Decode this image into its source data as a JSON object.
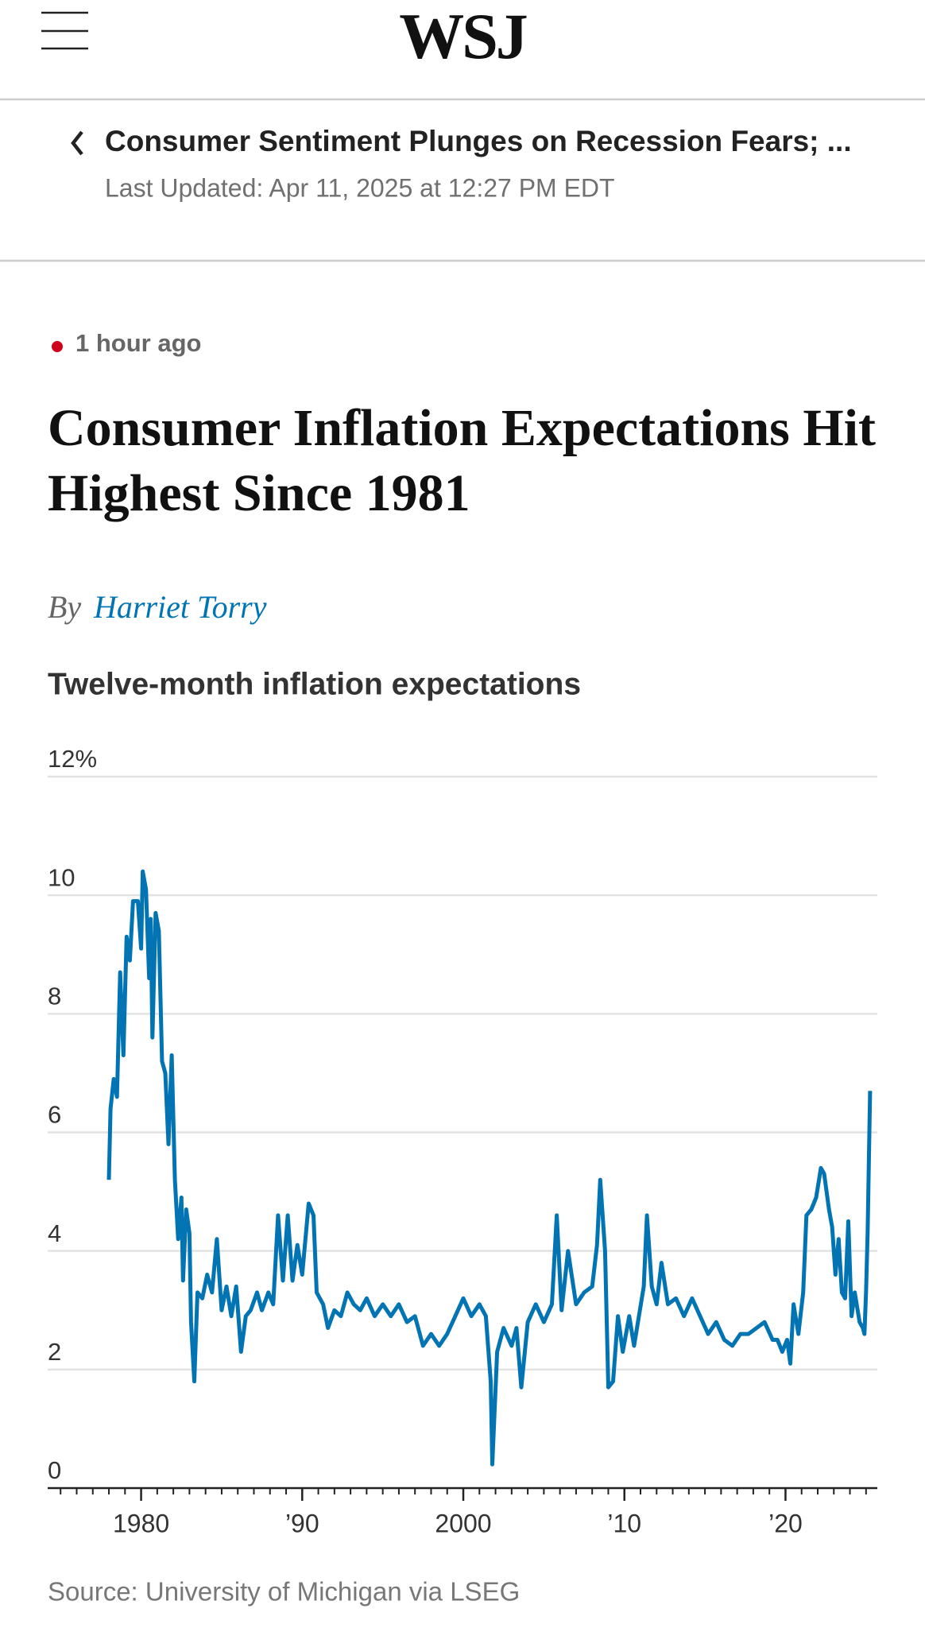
{
  "header": {
    "logo": "WSJ"
  },
  "live_bar": {
    "title": "Consumer Sentiment Plunges on Recession Fears; ...",
    "updated": "Last Updated: Apr 11, 2025 at 12:27 PM EDT"
  },
  "article": {
    "time": "1 hour ago",
    "headline": [
      "Consumer Inflation Expectations Hit",
      "Highest Since 1981"
    ],
    "byline_prefix": "By",
    "author": "Harriet Torry"
  },
  "chart_data": {
    "type": "line",
    "title": "Twelve-month inflation expectations",
    "source": "Source: University of Michigan via LSEG",
    "x": [
      1978.0,
      1978.1,
      1978.3,
      1978.5,
      1978.7,
      1978.9,
      1979.1,
      1979.3,
      1979.5,
      1979.8,
      1980.0,
      1980.1,
      1980.3,
      1980.5,
      1980.6,
      1980.7,
      1980.9,
      1981.1,
      1981.3,
      1981.5,
      1981.7,
      1981.9,
      1982.1,
      1982.3,
      1982.5,
      1982.6,
      1982.8,
      1983.0,
      1983.1,
      1983.3,
      1983.5,
      1983.8,
      1984.1,
      1984.4,
      1984.7,
      1985.0,
      1985.3,
      1985.6,
      1985.9,
      1986.2,
      1986.5,
      1986.8,
      1987.2,
      1987.5,
      1987.9,
      1988.2,
      1988.5,
      1988.8,
      1989.1,
      1989.4,
      1989.7,
      1990.0,
      1990.4,
      1990.7,
      1990.9,
      1991.3,
      1991.6,
      1992.0,
      1992.4,
      1992.8,
      1993.2,
      1993.6,
      1994.0,
      1994.5,
      1995.0,
      1995.5,
      1996.0,
      1996.5,
      1997.0,
      1997.5,
      1998.0,
      1998.5,
      1999.0,
      1999.5,
      2000.0,
      2000.5,
      2001.0,
      2001.4,
      2001.7,
      2001.8,
      2002.1,
      2002.5,
      2003.0,
      2003.3,
      2003.6,
      2004.0,
      2004.5,
      2005.0,
      2005.5,
      2005.8,
      2006.1,
      2006.5,
      2007.0,
      2007.5,
      2008.0,
      2008.3,
      2008.5,
      2008.8,
      2009.0,
      2009.3,
      2009.6,
      2009.9,
      2010.3,
      2010.6,
      2010.9,
      2011.2,
      2011.4,
      2011.7,
      2012.0,
      2012.3,
      2012.7,
      2013.2,
      2013.7,
      2014.2,
      2014.7,
      2015.2,
      2015.7,
      2016.2,
      2016.7,
      2017.2,
      2017.7,
      2018.2,
      2018.7,
      2019.2,
      2019.5,
      2019.8,
      2020.1,
      2020.3,
      2020.5,
      2020.8,
      2021.1,
      2021.3,
      2021.6,
      2021.9,
      2022.2,
      2022.4,
      2022.7,
      2022.9,
      2023.1,
      2023.3,
      2023.5,
      2023.7,
      2023.9,
      2024.1,
      2024.3,
      2024.6,
      2024.8,
      2024.9,
      2025.0,
      2025.1,
      2025.25
    ],
    "series": [
      {
        "color": "#0274b3",
        "values": [
          5.2,
          6.4,
          6.9,
          6.6,
          8.7,
          7.3,
          9.3,
          8.9,
          9.9,
          9.9,
          9.1,
          10.4,
          10.1,
          8.6,
          9.6,
          7.6,
          9.7,
          9.4,
          7.2,
          7.0,
          5.8,
          7.3,
          5.2,
          4.2,
          4.9,
          3.5,
          4.7,
          4.3,
          2.8,
          1.8,
          3.3,
          3.2,
          3.6,
          3.3,
          4.2,
          3.0,
          3.4,
          2.9,
          3.4,
          2.3,
          2.9,
          3.0,
          3.3,
          3.0,
          3.3,
          3.1,
          4.6,
          3.5,
          4.6,
          3.5,
          4.1,
          3.6,
          4.8,
          4.6,
          3.3,
          3.1,
          2.7,
          3.0,
          2.9,
          3.3,
          3.1,
          3.0,
          3.2,
          2.9,
          3.1,
          2.9,
          3.1,
          2.8,
          2.9,
          2.4,
          2.6,
          2.4,
          2.6,
          2.9,
          3.2,
          2.9,
          3.1,
          2.9,
          1.8,
          0.4,
          2.3,
          2.7,
          2.4,
          2.7,
          1.7,
          2.8,
          3.1,
          2.8,
          3.1,
          4.6,
          3.0,
          4.0,
          3.1,
          3.3,
          3.4,
          4.1,
          5.2,
          4.0,
          1.7,
          1.8,
          2.9,
          2.3,
          2.9,
          2.4,
          2.9,
          3.4,
          4.6,
          3.4,
          3.1,
          3.8,
          3.1,
          3.2,
          2.9,
          3.2,
          2.9,
          2.6,
          2.8,
          2.5,
          2.4,
          2.6,
          2.6,
          2.7,
          2.8,
          2.5,
          2.5,
          2.3,
          2.5,
          2.1,
          3.1,
          2.6,
          3.3,
          4.6,
          4.7,
          4.9,
          5.4,
          5.3,
          4.7,
          4.4,
          3.6,
          4.2,
          3.3,
          3.2,
          4.5,
          2.9,
          3.3,
          2.8,
          2.7,
          2.6,
          3.3,
          4.3,
          6.7
        ]
      }
    ],
    "xlim": [
      1974.2,
      2025.7
    ],
    "xticks": [
      1980,
      {
        "value": 1990,
        "label": "’90"
      },
      2000,
      {
        "value": 2010,
        "label": "’10"
      },
      {
        "value": 2020,
        "label": "’20"
      }
    ],
    "xminorticks": [
      1975,
      1976,
      1977,
      1978,
      1979,
      1981,
      1982,
      1983,
      1984,
      1985,
      1986,
      1987,
      1988,
      1989,
      1991,
      1992,
      1993,
      1994,
      1995,
      1996,
      1997,
      1998,
      1999,
      2001,
      2002,
      2003,
      2004,
      2005,
      2006,
      2007,
      2008,
      2009,
      2011,
      2012,
      2013,
      2014,
      2015,
      2016,
      2017,
      2018,
      2019,
      2021,
      2022,
      2023,
      2024,
      2025
    ],
    "ylim": [
      0,
      12
    ],
    "yticks": [
      0,
      2,
      4,
      6,
      8,
      10,
      {
        "value": 12,
        "label": "12%"
      }
    ],
    "grid": true
  }
}
